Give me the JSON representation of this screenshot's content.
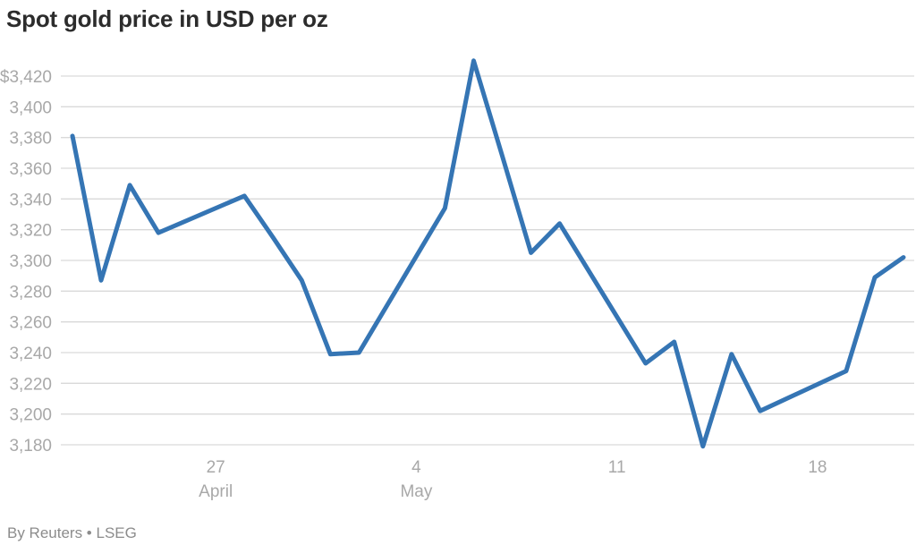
{
  "header": {
    "title": "Spot gold price in USD per oz"
  },
  "footer": {
    "credit": "By Reuters • LSEG"
  },
  "colors": {
    "line": "#3575b4",
    "grid": "#d9d9d9",
    "tick_text": "#a8a8a8",
    "title_text": "#2c2c2c",
    "credit_text": "#8c8c8c",
    "background": "#ffffff"
  },
  "chart_data": {
    "type": "line",
    "title": "Spot gold price in USD per oz",
    "xlabel": "",
    "ylabel": "USD per oz",
    "ylim": [
      3180,
      3430
    ],
    "grid": "horizontal",
    "legend": "none",
    "y_ticks": [
      {
        "value": 3420,
        "label": "$3,420"
      },
      {
        "value": 3400,
        "label": "3,400"
      },
      {
        "value": 3380,
        "label": "3,380"
      },
      {
        "value": 3360,
        "label": "3,360"
      },
      {
        "value": 3340,
        "label": "3,340"
      },
      {
        "value": 3320,
        "label": "3,320"
      },
      {
        "value": 3300,
        "label": "3,300"
      },
      {
        "value": 3280,
        "label": "3,280"
      },
      {
        "value": 3260,
        "label": "3,260"
      },
      {
        "value": 3240,
        "label": "3,240"
      },
      {
        "value": 3220,
        "label": "3,220"
      },
      {
        "value": 3200,
        "label": "3,200"
      },
      {
        "value": 3180,
        "label": "3,180"
      }
    ],
    "x_ticks": [
      {
        "t": 5,
        "day": "27",
        "month": "April"
      },
      {
        "t": 12,
        "day": "4",
        "month": "May"
      },
      {
        "t": 19,
        "day": "11",
        "month": ""
      },
      {
        "t": 26,
        "day": "18",
        "month": ""
      }
    ],
    "series": [
      {
        "name": "Spot gold price (USD/oz)",
        "points": [
          {
            "date": "Apr 22",
            "t": 0,
            "value": 3381
          },
          {
            "date": "Apr 23",
            "t": 1,
            "value": 3287
          },
          {
            "date": "Apr 24",
            "t": 2,
            "value": 3349
          },
          {
            "date": "Apr 25",
            "t": 3,
            "value": 3318
          },
          {
            "date": "Apr 28",
            "t": 6,
            "value": 3342
          },
          {
            "date": "Apr 29",
            "t": 7,
            "value": 3315
          },
          {
            "date": "Apr 30",
            "t": 8,
            "value": 3287
          },
          {
            "date": "May 1",
            "t": 9,
            "value": 3239
          },
          {
            "date": "May 2",
            "t": 10,
            "value": 3240
          },
          {
            "date": "May 5",
            "t": 13,
            "value": 3334
          },
          {
            "date": "May 6",
            "t": 14,
            "value": 3430
          },
          {
            "date": "May 7",
            "t": 15,
            "value": 3368
          },
          {
            "date": "May 8",
            "t": 16,
            "value": 3305
          },
          {
            "date": "May 9",
            "t": 17,
            "value": 3324
          },
          {
            "date": "May 12",
            "t": 20,
            "value": 3233
          },
          {
            "date": "May 13",
            "t": 21,
            "value": 3247
          },
          {
            "date": "May 14",
            "t": 22,
            "value": 3179
          },
          {
            "date": "May 15",
            "t": 23,
            "value": 3239
          },
          {
            "date": "May 16",
            "t": 24,
            "value": 3202
          },
          {
            "date": "May 19",
            "t": 27,
            "value": 3228
          },
          {
            "date": "May 20",
            "t": 28,
            "value": 3289
          },
          {
            "date": "May 21",
            "t": 29,
            "value": 3302
          }
        ]
      }
    ]
  }
}
